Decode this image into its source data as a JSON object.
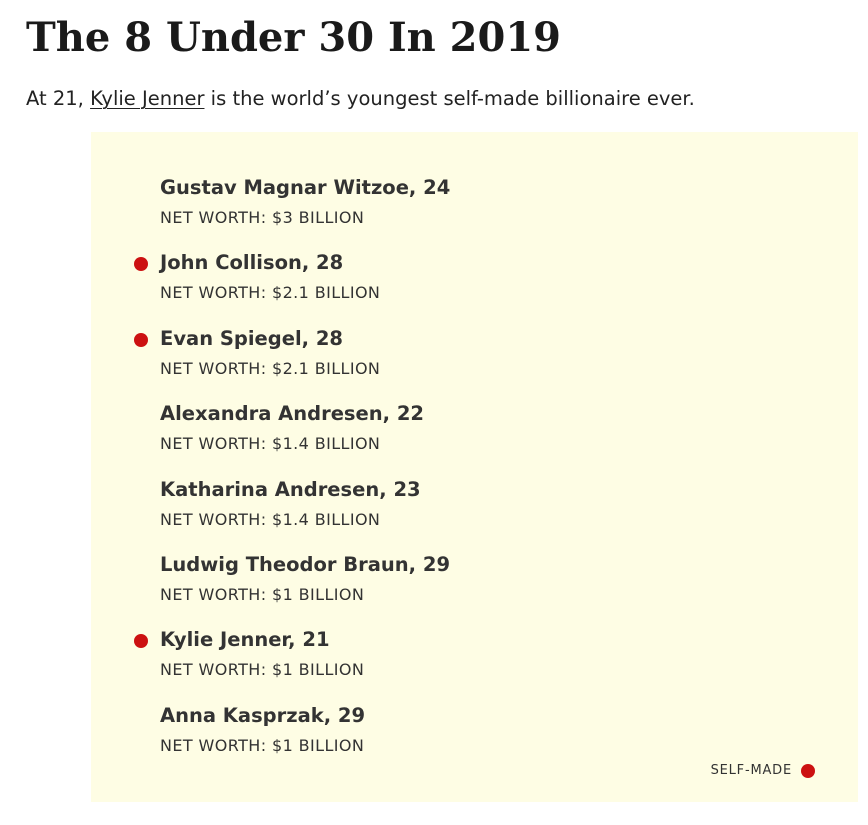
{
  "title": "The 8 Under 30 In 2019",
  "intro": {
    "prefix": "At 21, ",
    "link_text": "Kylie Jenner",
    "suffix": " is the world’s youngest self-made billionaire ever."
  },
  "billionaires": [
    {
      "name": "Gustav Magnar Witzoe, 24",
      "net_worth": "NET WORTH: $3 BILLION",
      "self_made": false
    },
    {
      "name": "John Collison, 28",
      "net_worth": "NET WORTH: $2.1 BILLION",
      "self_made": true
    },
    {
      "name": "Evan Spiegel, 28",
      "net_worth": "NET WORTH: $2.1 BILLION",
      "self_made": true
    },
    {
      "name": "Alexandra Andresen, 22",
      "net_worth": "NET WORTH: $1.4 BILLION",
      "self_made": false
    },
    {
      "name": "Katharina Andresen, 23",
      "net_worth": "NET WORTH: $1.4 BILLION",
      "self_made": false
    },
    {
      "name": "Ludwig Theodor Braun, 29",
      "net_worth": "NET WORTH: $1 BILLION",
      "self_made": false
    },
    {
      "name": "Kylie Jenner, 21",
      "net_worth": "NET WORTH: $1 BILLION",
      "self_made": true
    },
    {
      "name": "Anna Kasprzak, 29",
      "net_worth": "NET WORTH: $1 BILLION",
      "self_made": false
    }
  ],
  "legend": {
    "label": "SELF-MADE",
    "marker_color": "#cc1111"
  },
  "colors": {
    "panel_background": "#fefde4",
    "self_made_marker": "#cc1111"
  }
}
